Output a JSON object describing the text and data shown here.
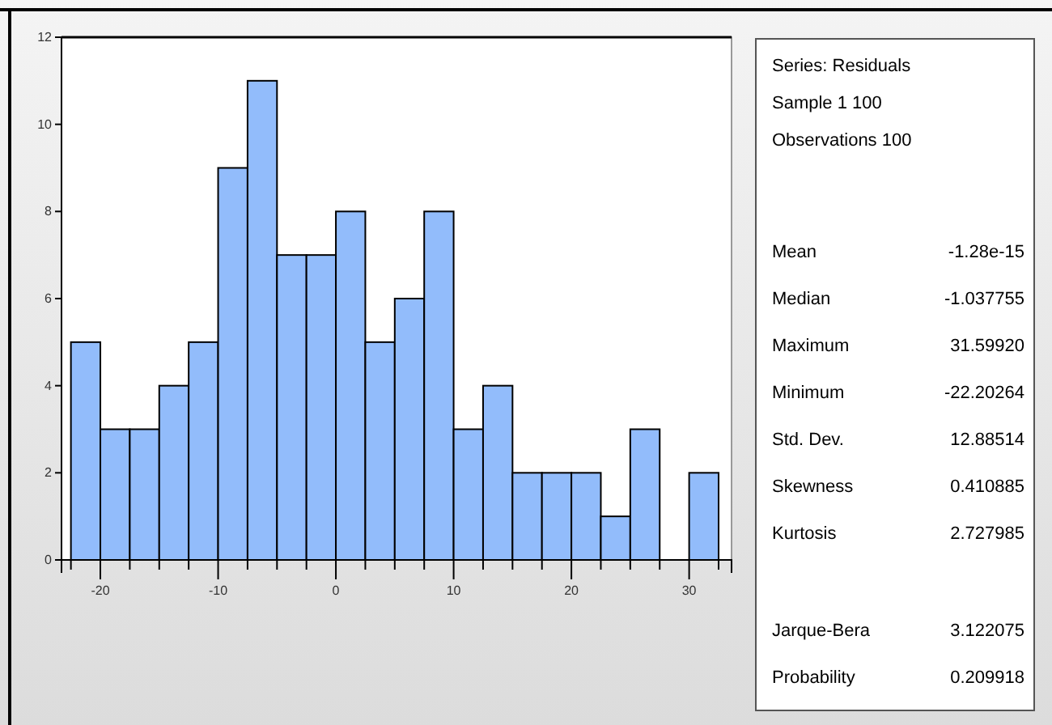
{
  "chart_data": [
    {
      "type": "histogram",
      "bins": [
        -22.5,
        -20,
        -17.5,
        -15,
        -12.5,
        -10,
        -7.5,
        -5,
        -2.5,
        0,
        2.5,
        5,
        7.5,
        10,
        12.5,
        15,
        17.5,
        20,
        22.5,
        25,
        27.5,
        30,
        32.5
      ],
      "values": [
        5,
        3,
        3,
        4,
        5,
        9,
        11,
        7,
        7,
        8,
        5,
        6,
        8,
        3,
        4,
        2,
        2,
        2,
        1,
        3,
        0,
        2
      ],
      "color": "#92bcfb",
      "xlim": [
        -23.3,
        33.6
      ],
      "ylim": [
        0,
        12
      ],
      "yticks": [
        0,
        2,
        4,
        6,
        8,
        10,
        12
      ],
      "xticks": [
        {
          "value": -22.5,
          "label": null
        },
        -20,
        {
          "value": -17.5,
          "label": null
        },
        {
          "value": -15,
          "label": null
        },
        {
          "value": -12.5,
          "label": null
        },
        -10,
        {
          "value": -7.5,
          "label": null
        },
        {
          "value": -5,
          "label": null
        },
        {
          "value": -2.5,
          "label": null
        },
        0,
        {
          "value": 2.5,
          "label": null
        },
        {
          "value": 5,
          "label": null
        },
        {
          "value": 7.5,
          "label": null
        },
        10,
        {
          "value": 12.5,
          "label": null
        },
        {
          "value": 15,
          "label": null
        },
        {
          "value": 17.5,
          "label": null
        },
        20,
        {
          "value": 22.5,
          "label": null
        },
        {
          "value": 25,
          "label": null
        },
        {
          "value": 27.5,
          "label": null
        },
        30,
        {
          "value": 32.5,
          "label": null
        }
      ],
      "grid": false
    },
    {
      "type": "other",
      "annotations": [
        "Series: Residuals",
        "Sample 1 100",
        "Observations 100",
        "Mean",
        "-1.28e-15",
        "Median",
        "-1.037755",
        "Maximum",
        "31.59920",
        "Minimum",
        "-22.20264",
        "Std. Dev.",
        "12.88514",
        "Skewness",
        "0.410885",
        "Kurtosis",
        "2.727985",
        "Jarque-Bera",
        "3.122075",
        "Probability",
        "0.209918"
      ]
    }
  ]
}
